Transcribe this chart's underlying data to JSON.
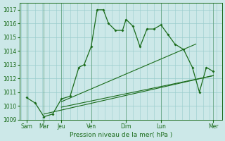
{
  "xlabel": "Pression niveau de la mer( hPa )",
  "bg_color": "#cce8e8",
  "grid_color": "#99cccc",
  "line_color": "#1a6b1a",
  "ylim": [
    1009,
    1017.5
  ],
  "yticks": [
    1009,
    1010,
    1011,
    1012,
    1013,
    1014,
    1015,
    1016,
    1017
  ],
  "xlim": [
    -0.1,
    11.5
  ],
  "major_xtick_positions": [
    0.3,
    1.3,
    2.3,
    4.0,
    6.0,
    8.0,
    11.0
  ],
  "major_xtick_labels": [
    "Sam",
    "Mar",
    "Jeu",
    "Ven",
    "Dim",
    "Lun",
    "Mer"
  ],
  "vline_positions": [
    0.3,
    1.3,
    2.3,
    4.0,
    6.0,
    8.0,
    11.0
  ],
  "series1_x": [
    0.3,
    0.8,
    1.3,
    1.8,
    2.3,
    2.8,
    3.3,
    3.6,
    4.0,
    4.35,
    4.7,
    5.0,
    5.4,
    5.8,
    6.0,
    6.4,
    6.8,
    7.2,
    7.6,
    8.0,
    8.4,
    8.8,
    9.3,
    9.8,
    10.2,
    10.6,
    11.0
  ],
  "series1_y": [
    1010.6,
    1010.2,
    1009.2,
    1009.4,
    1010.5,
    1010.7,
    1012.8,
    1013.0,
    1014.3,
    1017.0,
    1017.0,
    1016.0,
    1015.5,
    1015.5,
    1016.3,
    1015.8,
    1014.3,
    1015.6,
    1015.6,
    1015.9,
    1015.2,
    1014.5,
    1014.1,
    1012.8,
    1011.0,
    1012.8,
    1012.5
  ],
  "trend1_x": [
    1.3,
    11.0
  ],
  "trend1_y": [
    1009.4,
    1012.2
  ],
  "trend2_x": [
    2.3,
    11.0
  ],
  "trend2_y": [
    1009.9,
    1012.2
  ],
  "trend3_x": [
    2.3,
    10.0
  ],
  "trend3_y": [
    1010.3,
    1014.5
  ]
}
